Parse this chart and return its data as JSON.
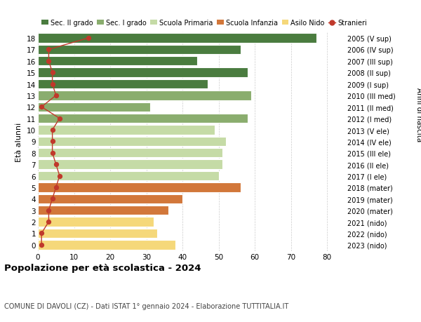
{
  "ages": [
    0,
    1,
    2,
    3,
    4,
    5,
    6,
    7,
    8,
    9,
    10,
    11,
    12,
    13,
    14,
    15,
    16,
    17,
    18
  ],
  "bar_values": [
    38,
    33,
    32,
    36,
    40,
    56,
    50,
    51,
    51,
    52,
    49,
    58,
    31,
    59,
    47,
    58,
    44,
    56,
    77
  ],
  "stranieri": [
    1,
    1,
    3,
    3,
    4,
    5,
    6,
    5,
    4,
    4,
    4,
    6,
    1,
    5,
    4,
    4,
    3,
    3,
    14
  ],
  "right_labels": [
    "2023 (nido)",
    "2022 (nido)",
    "2021 (nido)",
    "2020 (mater)",
    "2019 (mater)",
    "2018 (mater)",
    "2017 (I ele)",
    "2016 (II ele)",
    "2015 (III ele)",
    "2014 (IV ele)",
    "2013 (V ele)",
    "2012 (I med)",
    "2011 (II med)",
    "2010 (III med)",
    "2009 (I sup)",
    "2008 (II sup)",
    "2007 (III sup)",
    "2006 (IV sup)",
    "2005 (V sup)"
  ],
  "colors": {
    "sec2": "#4a7c3f",
    "sec1": "#8aad6e",
    "primaria": "#c5dba6",
    "infanzia": "#d2773a",
    "nido": "#f5d87a",
    "stranieri": "#c0392b"
  },
  "bar_colors": [
    "#f5d87a",
    "#f5d87a",
    "#f5d87a",
    "#d2773a",
    "#d2773a",
    "#d2773a",
    "#c5dba6",
    "#c5dba6",
    "#c5dba6",
    "#c5dba6",
    "#c5dba6",
    "#8aad6e",
    "#8aad6e",
    "#8aad6e",
    "#4a7c3f",
    "#4a7c3f",
    "#4a7c3f",
    "#4a7c3f",
    "#4a7c3f"
  ],
  "legend_labels": [
    "Sec. II grado",
    "Sec. I grado",
    "Scuola Primaria",
    "Scuola Infanzia",
    "Asilo Nido",
    "Stranieri"
  ],
  "legend_colors": [
    "#4a7c3f",
    "#8aad6e",
    "#c5dba6",
    "#d2773a",
    "#f5d87a",
    "#c0392b"
  ],
  "title": "Popolazione per età scolastica - 2024",
  "subtitle": "COMUNE DI DAVOLI (CZ) - Dati ISTAT 1° gennaio 2024 - Elaborazione TUTTITALIA.IT",
  "ylabel_left": "Età alunni",
  "ylabel_right": "Anni di nascita",
  "xlim": [
    0,
    85
  ],
  "xticks": [
    0,
    10,
    20,
    30,
    40,
    50,
    60,
    70,
    80
  ],
  "background_color": "#ffffff",
  "grid_color": "#cccccc"
}
